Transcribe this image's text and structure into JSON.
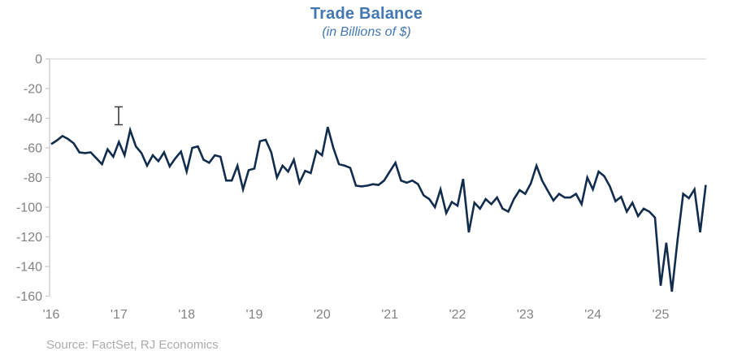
{
  "title": "Trade Balance",
  "subtitle": "(in Billions of $)",
  "source": "Source: FactSet, RJ Economics",
  "colors": {
    "title_text": "#4277B0",
    "line": "#112C4D",
    "axis_text": "#828282",
    "axis_line": "#C6C6C6",
    "gridline": "#DADADA",
    "source_text": "#ABABAB",
    "cursor": "#3C3C3C"
  },
  "chart_data": {
    "type": "line",
    "title": "Trade Balance",
    "subtitle": "(in Billions of $)",
    "ylabel": "",
    "xlabel": "",
    "unit": "Billions of $",
    "frequency": "monthly",
    "x_start": "2016-01",
    "x_end": "2025-09",
    "ylim": [
      -160,
      0
    ],
    "y_ticks": [
      0,
      -20,
      -40,
      -60,
      -80,
      -100,
      -120,
      -140,
      -160
    ],
    "x_tick_labels": [
      "'16",
      "'17",
      "'18",
      "'19",
      "'20",
      "'21",
      "'22",
      "'23",
      "'24",
      "'25"
    ],
    "grid": "zero-line-only",
    "legend": "none",
    "series": [
      {
        "name": "Trade Balance",
        "values": [
          -57.5,
          -55,
          -52,
          -54,
          -57,
          -63,
          -63.5,
          -63,
          -67,
          -71,
          -61,
          -66,
          -56,
          -65,
          -48,
          -59,
          -63.5,
          -72,
          -65,
          -69,
          -63,
          -72.5,
          -67,
          -62.5,
          -76,
          -60,
          -59,
          -68,
          -70,
          -65,
          -66,
          -82,
          -82,
          -72,
          -88,
          -75,
          -74,
          -55.5,
          -54.5,
          -63,
          -80,
          -72,
          -76,
          -68,
          -83.5,
          -75.5,
          -77,
          -62,
          -65,
          -46,
          -60,
          -71,
          -72,
          -73.5,
          -85.5,
          -86,
          -85.5,
          -84.5,
          -85,
          -82,
          -76,
          -70,
          -82,
          -83.5,
          -82,
          -84.5,
          -92,
          -94.5,
          -100,
          -88,
          -104,
          -96.5,
          -99,
          -81,
          -117,
          -97,
          -101,
          -94.5,
          -98,
          -93.5,
          -101,
          -103,
          -94.5,
          -88.5,
          -91,
          -84,
          -72,
          -82,
          -89,
          -95.5,
          -91,
          -93.5,
          -93.5,
          -91,
          -98,
          -80,
          -88,
          -76,
          -79,
          -86,
          -96,
          -93,
          -103,
          -97,
          -106,
          -101,
          -103,
          -107,
          -153,
          -124,
          -157,
          -122,
          -91,
          -94,
          -88,
          -117,
          -85
        ]
      }
    ]
  }
}
